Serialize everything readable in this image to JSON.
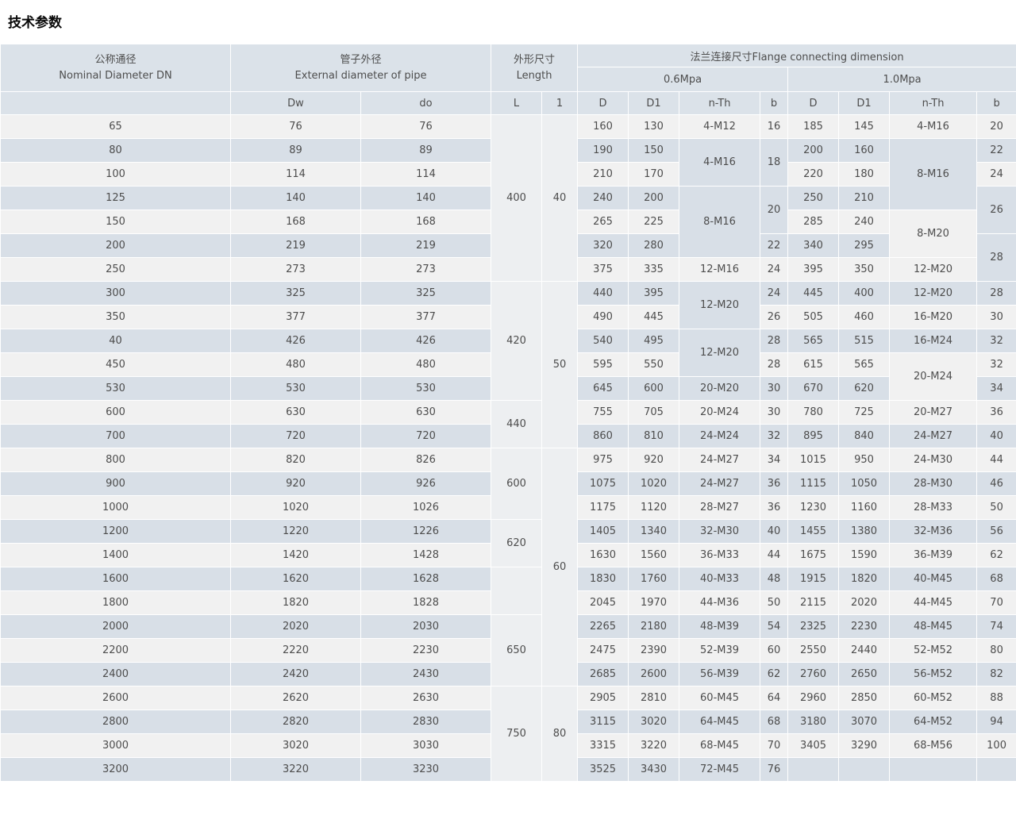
{
  "page_title": "技术参数",
  "colors": {
    "header_bg": "#dbe2e9",
    "row_light": "#f1f1f1",
    "row_blue": "#d8dfe7",
    "merged_bg": "#edeff1",
    "grid": "#ffffff",
    "text": "#4d4d4d"
  },
  "table": {
    "header": {
      "dn_zh": "公称通径",
      "dn_en": "Nominal Diameter DN",
      "pipe_zh": "管子外径",
      "pipe_en": "External diameter of pipe",
      "length_zh": "外形尺寸",
      "length_en": "Length",
      "flange": "法兰连接尺寸Flange connecting dimension",
      "p06": "0.6Mpa",
      "p10": "1.0Mpa",
      "sub": {
        "dw": "Dw",
        "do": "do",
        "L": "L",
        "l": "1",
        "D": "D",
        "D1": "D1",
        "nth": "n-Th",
        "b": "b"
      }
    },
    "rows": [
      [
        "65",
        "76",
        "76",
        {
          "t": "400",
          "rs": 7,
          "cls": "lt"
        },
        {
          "t": "40",
          "rs": 7,
          "cls": "lt"
        },
        "160",
        "130",
        "4-M12",
        "16",
        "185",
        "145",
        "4-M16",
        "20"
      ],
      [
        "80",
        "89",
        "89",
        "190",
        "150",
        {
          "t": "4-M16",
          "rs": 2
        },
        {
          "t": "18",
          "rs": 2
        },
        "200",
        "160",
        {
          "t": "8-M16",
          "rs": 3
        },
        "22"
      ],
      [
        "100",
        "114",
        "114",
        "210",
        "170",
        "220",
        "180",
        "24"
      ],
      [
        "125",
        "140",
        "140",
        "240",
        "200",
        {
          "t": "8-M16",
          "rs": 3
        },
        {
          "t": "20",
          "rs": 2
        },
        "250",
        "210",
        {
          "t": "26",
          "rs": 2
        }
      ],
      [
        "150",
        "168",
        "168",
        "265",
        "225",
        "285",
        "240",
        {
          "t": "8-M20",
          "rs": 2
        }
      ],
      [
        "200",
        "219",
        "219",
        "320",
        "280",
        "22",
        "340",
        "295",
        {
          "t": "28",
          "rs": 2
        }
      ],
      [
        "250",
        "273",
        "273",
        "375",
        "335",
        "12-M16",
        "24",
        "395",
        "350",
        "12-M20"
      ],
      [
        "300",
        "325",
        "325",
        {
          "t": "420",
          "rs": 5,
          "cls": "lt"
        },
        {
          "t": "50",
          "rs": 7,
          "cls": "lt"
        },
        "440",
        "395",
        {
          "t": "12-M20",
          "rs": 2
        },
        "24",
        "445",
        "400",
        "12-M20",
        "28"
      ],
      [
        "350",
        "377",
        "377",
        "490",
        "445",
        "26",
        "505",
        "460",
        "16-M20",
        "30"
      ],
      [
        "40",
        "426",
        "426",
        "540",
        "495",
        {
          "t": "12-M20",
          "rs": 2
        },
        "28",
        "565",
        "515",
        "16-M24",
        "32"
      ],
      [
        "450",
        "480",
        "480",
        "595",
        "550",
        "28",
        "615",
        "565",
        {
          "t": "20-M24",
          "rs": 2
        },
        "32"
      ],
      [
        "530",
        "530",
        "530",
        "645",
        "600",
        "20-M20",
        "30",
        "670",
        "620",
        "34"
      ],
      [
        "600",
        "630",
        "630",
        {
          "t": "440",
          "rs": 2,
          "cls": "lt"
        },
        "755",
        "705",
        "20-M24",
        "30",
        "780",
        "725",
        "20-M27",
        "36"
      ],
      [
        "700",
        "720",
        "720",
        "860",
        "810",
        "24-M24",
        "32",
        "895",
        "840",
        "24-M27",
        "40"
      ],
      [
        "800",
        "820",
        "826",
        {
          "t": "600",
          "rs": 3,
          "cls": "lt"
        },
        {
          "t": "60",
          "rs": 10,
          "cls": "lt"
        },
        "975",
        "920",
        "24-M27",
        "34",
        "1015",
        "950",
        "24-M30",
        "44"
      ],
      [
        "900",
        "920",
        "926",
        "1075",
        "1020",
        "24-M27",
        "36",
        "1115",
        "1050",
        "28-M30",
        "46"
      ],
      [
        "1000",
        "1020",
        "1026",
        "1175",
        "1120",
        "28-M27",
        "36",
        "1230",
        "1160",
        "28-M33",
        "50"
      ],
      [
        "1200",
        "1220",
        "1226",
        {
          "t": "620",
          "rs": 2,
          "cls": "lt"
        },
        "1405",
        "1340",
        "32-M30",
        "40",
        "1455",
        "1380",
        "32-M36",
        "56"
      ],
      [
        "1400",
        "1420",
        "1428",
        "1630",
        "1560",
        "36-M33",
        "44",
        "1675",
        "1590",
        "36-M39",
        "62"
      ],
      [
        "1600",
        "1620",
        "1628",
        {
          "t": "",
          "rs": 2,
          "cls": "lt"
        },
        "1830",
        "1760",
        "40-M33",
        "48",
        "1915",
        "1820",
        "40-M45",
        "68"
      ],
      [
        "1800",
        "1820",
        "1828",
        "2045",
        "1970",
        "44-M36",
        "50",
        "2115",
        "2020",
        "44-M45",
        "70"
      ],
      [
        "2000",
        "2020",
        "2030",
        {
          "t": "650",
          "rs": 3,
          "cls": "lt"
        },
        "2265",
        "2180",
        "48-M39",
        "54",
        "2325",
        "2230",
        "48-M45",
        "74"
      ],
      [
        "2200",
        "2220",
        "2230",
        "2475",
        "2390",
        "52-M39",
        "60",
        "2550",
        "2440",
        "52-M52",
        "80"
      ],
      [
        "2400",
        "2420",
        "2430",
        "2685",
        "2600",
        "56-M39",
        "62",
        "2760",
        "2650",
        "56-M52",
        "82"
      ],
      [
        "2600",
        "2620",
        "2630",
        {
          "t": "750",
          "rs": 4,
          "cls": "lt"
        },
        {
          "t": "80",
          "rs": 4,
          "cls": "lt"
        },
        "2905",
        "2810",
        "60-M45",
        "64",
        "2960",
        "2850",
        "60-M52",
        "88"
      ],
      [
        "2800",
        "2820",
        "2830",
        "3115",
        "3020",
        "64-M45",
        "68",
        "3180",
        "3070",
        "64-M52",
        "94"
      ],
      [
        "3000",
        "3020",
        "3030",
        "3315",
        "3220",
        "68-M45",
        "70",
        "3405",
        "3290",
        "68-M56",
        "100"
      ],
      [
        "3200",
        "3220",
        "3230",
        "3525",
        "3430",
        "72-M45",
        "76",
        "",
        "",
        "",
        ""
      ]
    ]
  }
}
